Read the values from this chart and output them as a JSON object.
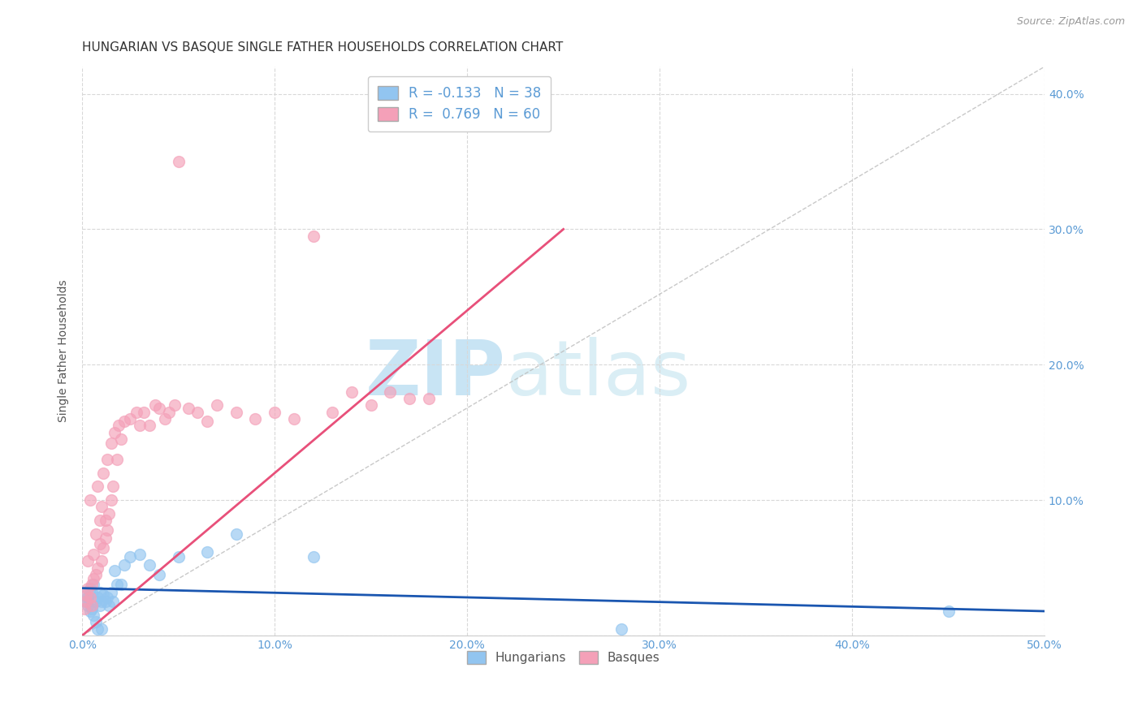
{
  "title": "HUNGARIAN VS BASQUE SINGLE FATHER HOUSEHOLDS CORRELATION CHART",
  "source": "Source: ZipAtlas.com",
  "ylabel": "Single Father Households",
  "xlim": [
    0.0,
    0.5
  ],
  "ylim": [
    0.0,
    0.42
  ],
  "xticks": [
    0.0,
    0.1,
    0.2,
    0.3,
    0.4,
    0.5
  ],
  "yticks": [
    0.0,
    0.1,
    0.2,
    0.3,
    0.4
  ],
  "ytick_labels": [
    "",
    "10.0%",
    "20.0%",
    "30.0%",
    "40.0%"
  ],
  "xtick_labels": [
    "0.0%",
    "10.0%",
    "20.0%",
    "30.0%",
    "40.0%",
    "50.0%"
  ],
  "hungarian_color": "#92c5f0",
  "basque_color": "#f4a0b8",
  "hun_line_color": "#1a56b0",
  "bas_line_color": "#e8507a",
  "diag_color": "#bbbbbb",
  "axis_color": "#5b9bd5",
  "grid_color": "#d8d8d8",
  "background_color": "#ffffff",
  "watermark_zip": "ZIP",
  "watermark_atlas": "atlas",
  "watermark_color": "#daeef8",
  "hungarian_x": [
    0.001,
    0.002,
    0.003,
    0.003,
    0.004,
    0.004,
    0.005,
    0.005,
    0.006,
    0.006,
    0.007,
    0.007,
    0.008,
    0.008,
    0.009,
    0.009,
    0.01,
    0.01,
    0.011,
    0.012,
    0.013,
    0.014,
    0.015,
    0.016,
    0.017,
    0.018,
    0.02,
    0.022,
    0.025,
    0.03,
    0.035,
    0.04,
    0.05,
    0.065,
    0.08,
    0.12,
    0.28,
    0.45
  ],
  "hungarian_y": [
    0.03,
    0.025,
    0.028,
    0.022,
    0.035,
    0.018,
    0.032,
    0.02,
    0.038,
    0.015,
    0.025,
    0.01,
    0.028,
    0.005,
    0.022,
    0.032,
    0.025,
    0.005,
    0.03,
    0.025,
    0.028,
    0.022,
    0.032,
    0.025,
    0.048,
    0.038,
    0.038,
    0.052,
    0.058,
    0.06,
    0.052,
    0.045,
    0.058,
    0.062,
    0.075,
    0.058,
    0.005,
    0.018
  ],
  "basque_x": [
    0.001,
    0.002,
    0.002,
    0.003,
    0.003,
    0.004,
    0.004,
    0.005,
    0.005,
    0.006,
    0.006,
    0.007,
    0.007,
    0.008,
    0.008,
    0.009,
    0.009,
    0.01,
    0.01,
    0.011,
    0.011,
    0.012,
    0.012,
    0.013,
    0.013,
    0.014,
    0.015,
    0.015,
    0.016,
    0.017,
    0.018,
    0.019,
    0.02,
    0.022,
    0.025,
    0.028,
    0.03,
    0.032,
    0.035,
    0.038,
    0.04,
    0.043,
    0.045,
    0.048,
    0.05,
    0.055,
    0.06,
    0.065,
    0.07,
    0.08,
    0.09,
    0.1,
    0.11,
    0.12,
    0.13,
    0.14,
    0.15,
    0.16,
    0.17,
    0.18
  ],
  "basque_y": [
    0.02,
    0.025,
    0.03,
    0.035,
    0.055,
    0.028,
    0.1,
    0.038,
    0.022,
    0.042,
    0.06,
    0.045,
    0.075,
    0.05,
    0.11,
    0.068,
    0.085,
    0.055,
    0.095,
    0.065,
    0.12,
    0.072,
    0.085,
    0.078,
    0.13,
    0.09,
    0.1,
    0.142,
    0.11,
    0.15,
    0.13,
    0.155,
    0.145,
    0.158,
    0.16,
    0.165,
    0.155,
    0.165,
    0.155,
    0.17,
    0.168,
    0.16,
    0.165,
    0.17,
    0.35,
    0.168,
    0.165,
    0.158,
    0.17,
    0.165,
    0.16,
    0.165,
    0.16,
    0.295,
    0.165,
    0.18,
    0.17,
    0.18,
    0.175,
    0.175
  ],
  "hun_line_x": [
    0.0,
    0.5
  ],
  "hun_line_y": [
    0.035,
    0.018
  ],
  "bas_line_x": [
    0.0,
    0.25
  ],
  "bas_line_y": [
    0.0,
    0.3
  ],
  "title_fontsize": 11,
  "label_fontsize": 10,
  "tick_fontsize": 10,
  "legend_fontsize": 12
}
